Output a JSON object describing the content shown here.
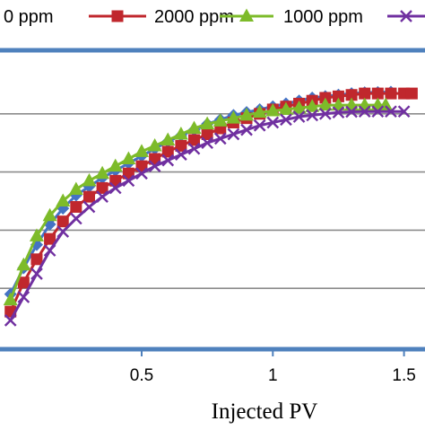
{
  "chart_data": {
    "type": "line",
    "title": "",
    "xlabel": "Injected PV",
    "ylabel": "",
    "xlim": [
      -0.04,
      1.58
    ],
    "ylim": [
      0,
      100
    ],
    "x_ticks": [
      0.5,
      1,
      1.5
    ],
    "x_tick_labels": [
      "0.5",
      "1",
      "1.5"
    ],
    "y_gridlines": [
      20,
      40,
      60,
      80
    ],
    "grid": true,
    "legend_position": "top",
    "legend_labels": [
      "0 ppm",
      "2000 ppm",
      "1000 ppm",
      ""
    ],
    "series": [
      {
        "name": "0 ppm",
        "color": "#4472C4",
        "marker": "diamond",
        "x": [
          0,
          0.05,
          0.1,
          0.15,
          0.2,
          0.25,
          0.3,
          0.35,
          0.4,
          0.45,
          0.5,
          0.55,
          0.6,
          0.65,
          0.7,
          0.75,
          0.8,
          0.85,
          0.9,
          0.95,
          1,
          1.05,
          1.1,
          1.15,
          1.2,
          1.25,
          1.3,
          1.35,
          1.4,
          1.45
        ],
        "y": [
          18,
          27,
          35,
          42,
          47.5,
          52,
          55,
          58,
          60.5,
          63,
          65.5,
          68,
          70.5,
          72.5,
          74.5,
          76.5,
          78,
          79.5,
          80.5,
          81.5,
          82.5,
          83.5,
          84.5,
          85.5,
          86,
          86.5,
          87,
          87.3,
          87.4,
          87.5
        ]
      },
      {
        "name": "2000 ppm",
        "color": "#C0272D",
        "marker": "square",
        "x": [
          0,
          0.05,
          0.1,
          0.15,
          0.2,
          0.25,
          0.3,
          0.35,
          0.4,
          0.45,
          0.5,
          0.55,
          0.6,
          0.65,
          0.7,
          0.75,
          0.8,
          0.85,
          0.9,
          0.95,
          1,
          1.05,
          1.1,
          1.15,
          1.2,
          1.25,
          1.3,
          1.35,
          1.4,
          1.45,
          1.5,
          1.53
        ],
        "y": [
          12,
          22,
          30,
          37,
          43,
          48,
          51.5,
          54.5,
          57,
          59.5,
          62,
          64.5,
          67,
          69,
          71,
          73,
          75,
          77,
          78.5,
          80,
          81.5,
          82.5,
          83.5,
          84.5,
          85.5,
          86,
          86.5,
          87,
          87,
          87,
          87,
          87
        ]
      },
      {
        "name": "1000 ppm",
        "color": "#7DBB2A",
        "marker": "triangle",
        "x": [
          0,
          0.05,
          0.1,
          0.15,
          0.2,
          0.25,
          0.3,
          0.35,
          0.4,
          0.45,
          0.5,
          0.55,
          0.6,
          0.65,
          0.7,
          0.75,
          0.8,
          0.85,
          0.9,
          0.95,
          1,
          1.05,
          1.1,
          1.15,
          1.2,
          1.25,
          1.3,
          1.35,
          1.4,
          1.43
        ],
        "y": [
          16,
          28,
          38,
          45,
          50,
          54,
          57,
          59.5,
          62,
          64.5,
          67,
          69,
          71,
          73,
          75,
          76.5,
          77.5,
          78.5,
          79.5,
          80.5,
          81,
          81.5,
          82,
          82.5,
          83,
          83,
          83,
          83,
          83,
          83
        ]
      },
      {
        "name": "",
        "color": "#7030A0",
        "marker": "x",
        "x": [
          0,
          0.05,
          0.1,
          0.15,
          0.2,
          0.25,
          0.3,
          0.35,
          0.4,
          0.45,
          0.5,
          0.55,
          0.6,
          0.65,
          0.7,
          0.75,
          0.8,
          0.85,
          0.9,
          0.95,
          1,
          1.05,
          1.1,
          1.15,
          1.2,
          1.25,
          1.3,
          1.35,
          1.4,
          1.45,
          1.5
        ],
        "y": [
          9,
          17,
          25,
          33,
          39.5,
          44,
          48,
          51.5,
          54.5,
          57,
          59.5,
          62,
          64,
          66,
          68,
          70,
          71.5,
          73,
          74.5,
          76,
          77,
          78,
          79,
          79.5,
          80,
          80.5,
          80.7,
          80.8,
          80.8,
          80.8,
          80.8
        ]
      }
    ]
  }
}
